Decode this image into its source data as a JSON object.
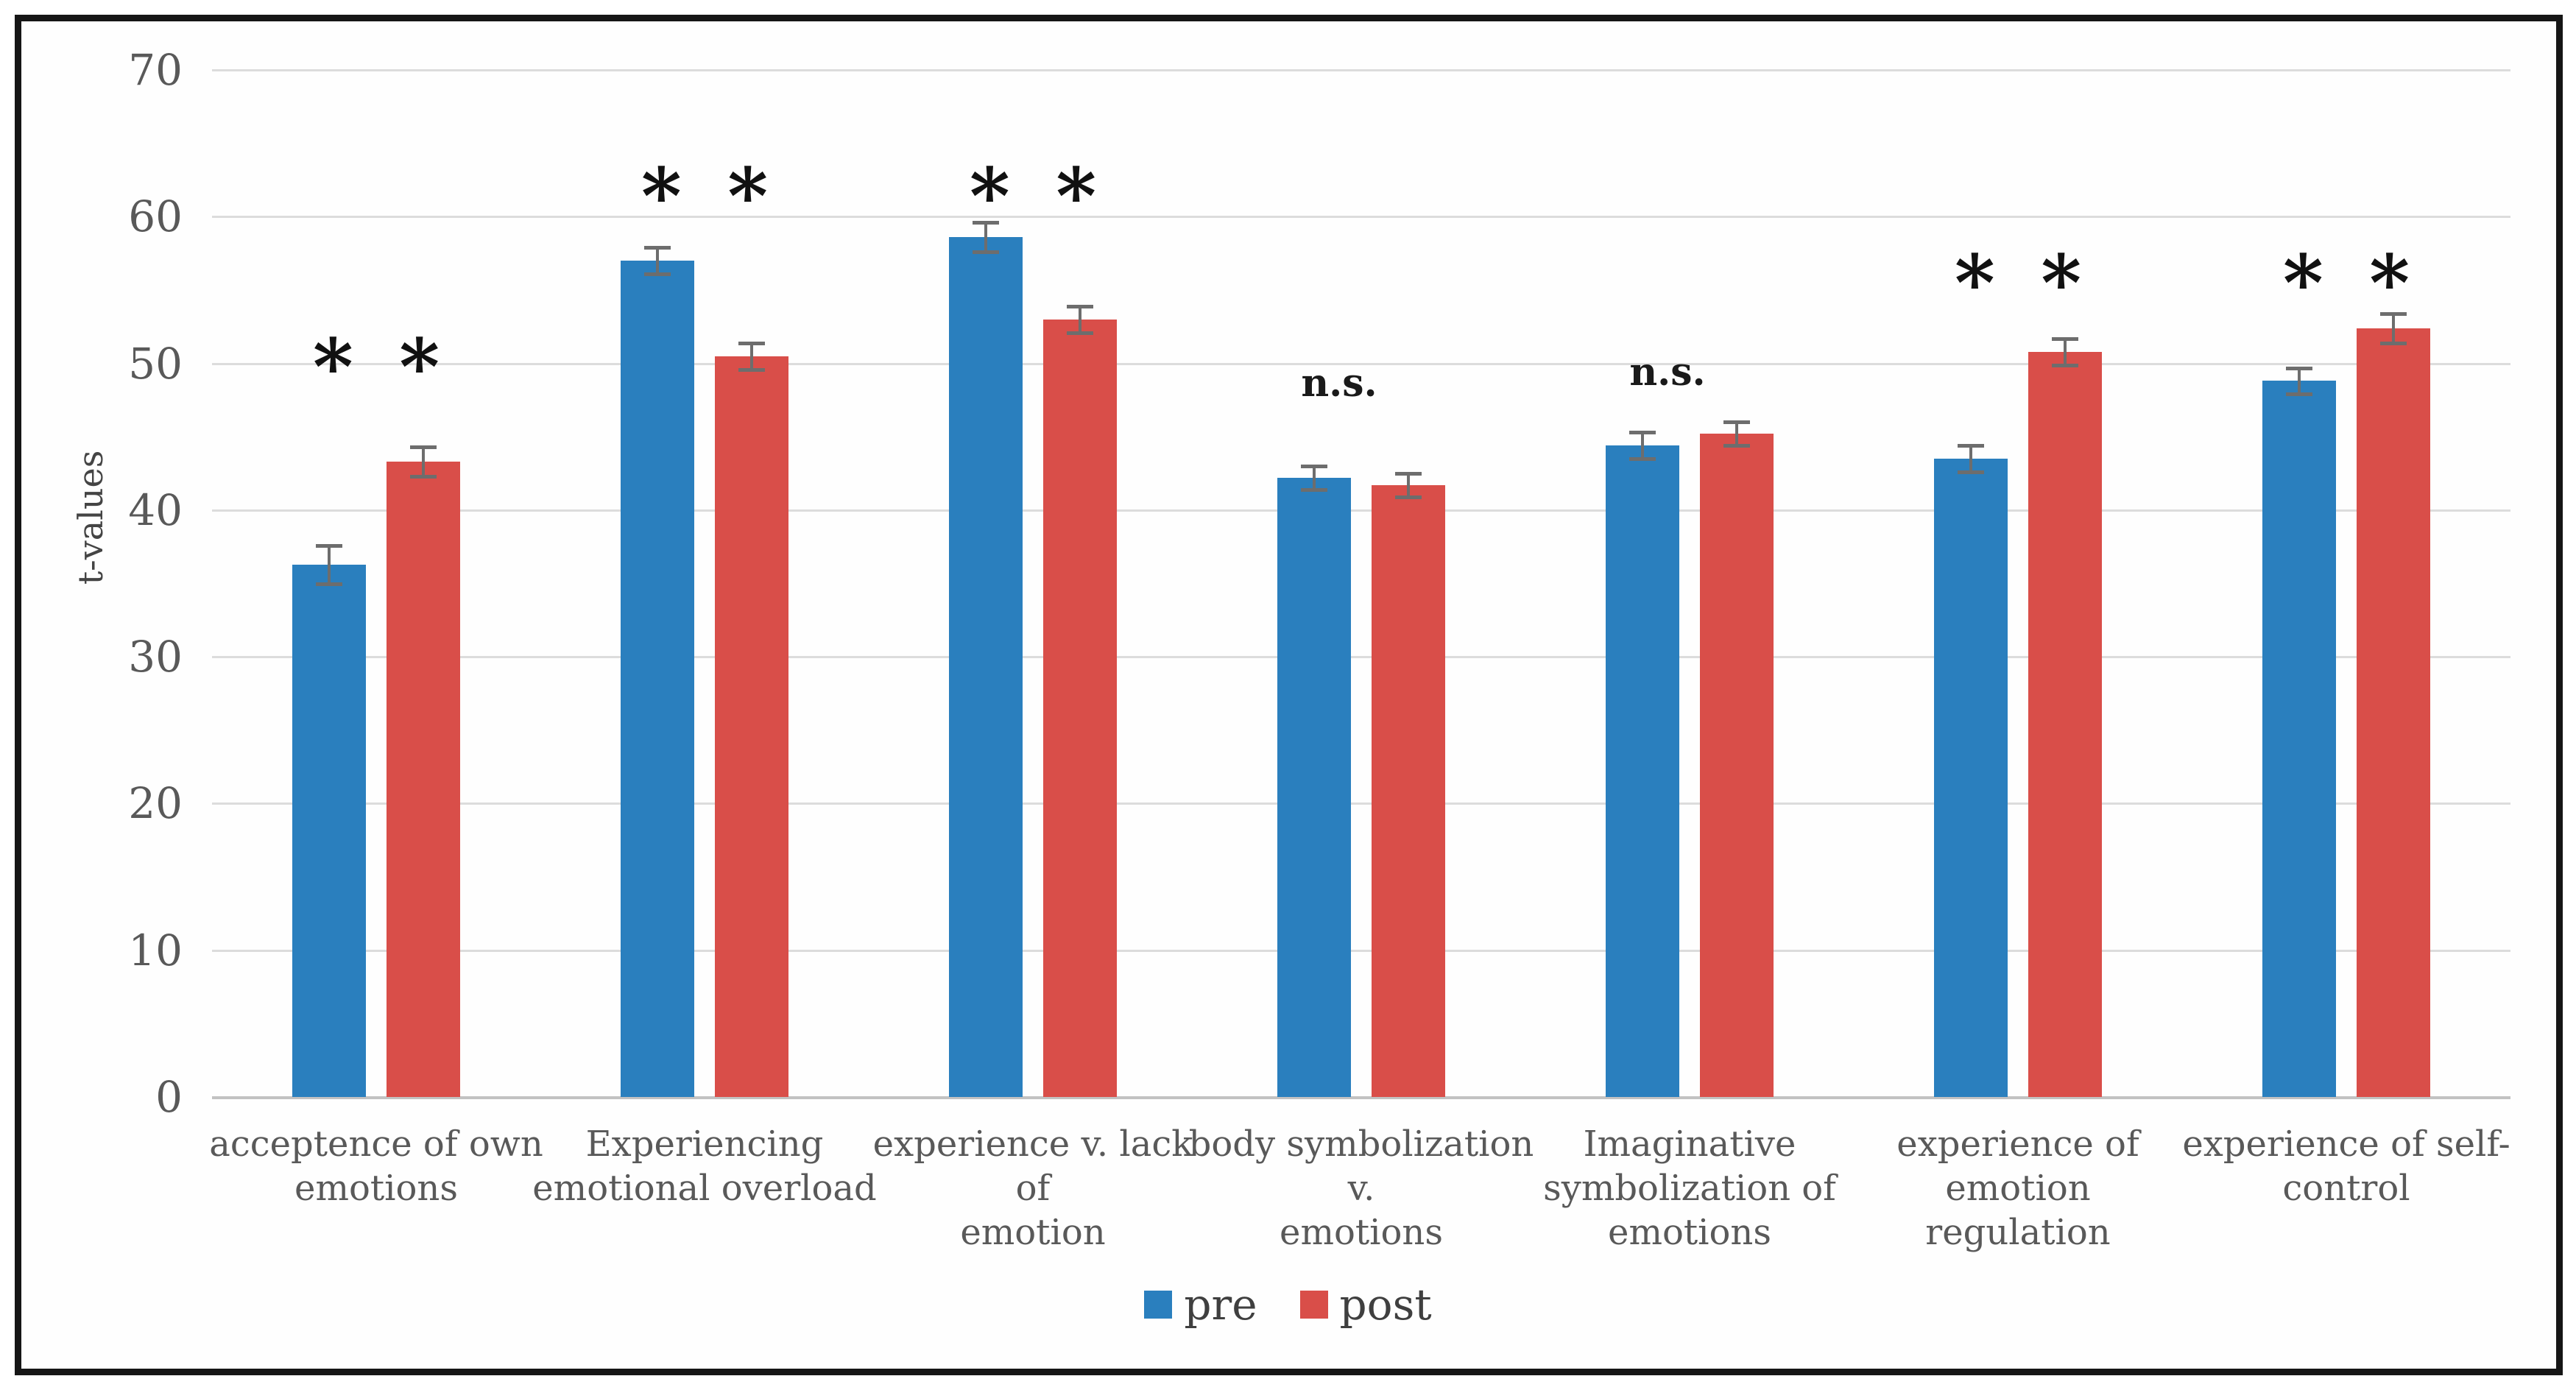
{
  "chart_data": {
    "type": "bar",
    "title": "",
    "xlabel": "",
    "ylabel": "t-values",
    "ylim": [
      0,
      70
    ],
    "yticks": [
      0,
      10,
      20,
      30,
      40,
      50,
      60,
      70
    ],
    "grid": true,
    "legend_position": "bottom-center",
    "series": [
      {
        "name": "pre",
        "color": "#2A7FBE"
      },
      {
        "name": "post",
        "color": "#D94E49"
      }
    ],
    "error_bar_color": "#6d6d6d",
    "categories": [
      {
        "label": "acceptence of own emotions",
        "label_lines": [
          "acceptence of own",
          "emotions"
        ],
        "pre": 36.3,
        "post": 43.3,
        "pre_err": 1.3,
        "post_err": 1.0,
        "sig": "**",
        "sig_y": 50.4
      },
      {
        "label": "Experiencing emotional overload",
        "label_lines": [
          "Experiencing",
          "emotional overload"
        ],
        "pre": 57.0,
        "post": 50.5,
        "pre_err": 0.9,
        "post_err": 0.9,
        "sig": "**",
        "sig_y": 62.0
      },
      {
        "label": "experience v. lack of emotion",
        "label_lines": [
          "experience v. lack of",
          "emotion"
        ],
        "pre": 58.6,
        "post": 53.0,
        "pre_err": 1.0,
        "post_err": 0.9,
        "sig": "**",
        "sig_y": 62.0
      },
      {
        "label": "body symbolization v. emotions",
        "label_lines": [
          "body symbolization v.",
          "emotions"
        ],
        "pre": 42.2,
        "post": 41.7,
        "pre_err": 0.8,
        "post_err": 0.8,
        "sig": "n.s.",
        "sig_y": 48.6
      },
      {
        "label": "Imaginative symbolization of emotions",
        "label_lines": [
          "Imaginative",
          "symbolization of",
          "emotions"
        ],
        "pre": 44.4,
        "post": 45.2,
        "pre_err": 0.9,
        "post_err": 0.8,
        "sig": "n.s.",
        "sig_y": 49.4
      },
      {
        "label": "experience of  emotion regulation",
        "label_lines": [
          "experience of  emotion",
          "regulation"
        ],
        "pre": 43.5,
        "post": 50.8,
        "pre_err": 0.9,
        "post_err": 0.9,
        "sig": "**",
        "sig_y": 56.1
      },
      {
        "label": "experience of self-control",
        "label_lines": [
          "experience of self-",
          "control"
        ],
        "pre": 48.8,
        "post": 52.4,
        "pre_err": 0.9,
        "post_err": 1.0,
        "sig": "**",
        "sig_y": 56.1
      }
    ],
    "significance_legend": {
      "stars": "**",
      "not_significant": "n.s."
    }
  },
  "colors": {
    "grid": "#dcdcdc",
    "axis": "#c2c2c2",
    "tick_text": "#595959",
    "category_text": "#595959",
    "legend_text": "#3f3f3f",
    "frame_border": "#161616"
  }
}
